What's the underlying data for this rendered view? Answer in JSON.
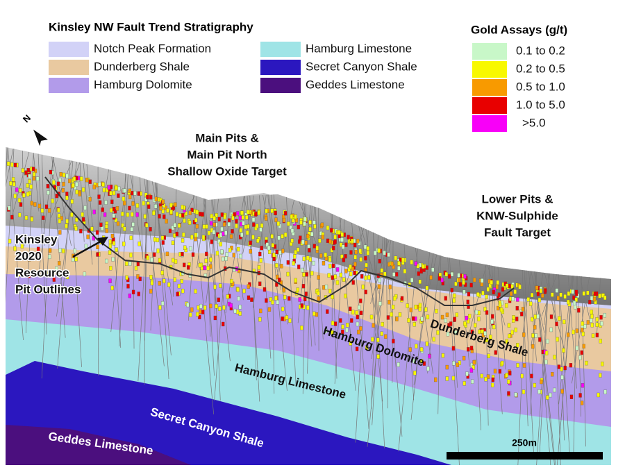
{
  "stratigraphy_legend": {
    "title": "Kinsley NW Fault Trend Stratigraphy",
    "items": [
      {
        "label": "Notch Peak Formation",
        "color": "#d2d2f7"
      },
      {
        "label": "Dunderberg Shale",
        "color": "#e9c9a0"
      },
      {
        "label": "Hamburg Dolomite",
        "color": "#b29bea"
      },
      {
        "label": "Hamburg Limestone",
        "color": "#9fe4e6"
      },
      {
        "label": "Secret Canyon Shale",
        "color": "#2b17bf"
      },
      {
        "label": "Geddes Limestone",
        "color": "#4b0f7e"
      }
    ]
  },
  "gold_assays_legend": {
    "title": "Gold Assays (g/t)",
    "items": [
      {
        "label": "0.1 to 0.2",
        "color": "#c8f7c8"
      },
      {
        "label": "0.2 to 0.5",
        "color": "#f8f800"
      },
      {
        "label": "0.5 to 1.0",
        "color": "#f89a00"
      },
      {
        "label": "1.0 to 5.0",
        "color": "#e80000"
      },
      {
        "label": ">5.0",
        "color": "#f800f8"
      }
    ]
  },
  "annotations": {
    "main_pits": [
      "Main Pits &",
      "Main Pit North",
      "Shallow Oxide Target"
    ],
    "lower_pits": [
      "Lower Pits &",
      "KNW-Sulphide",
      "Fault Target"
    ],
    "resource_pits": [
      "Kinsley",
      "2020",
      "Resource",
      "Pit Outlines"
    ]
  },
  "unit_labels": [
    "Dunderberg Shale",
    "Hamburg Dolomite",
    "Hamburg Limestone",
    "Secret Canyon Shale",
    "Geddes Limestone"
  ],
  "scale_bar": {
    "label": "250m"
  },
  "north_arrow": {
    "label": "N"
  }
}
